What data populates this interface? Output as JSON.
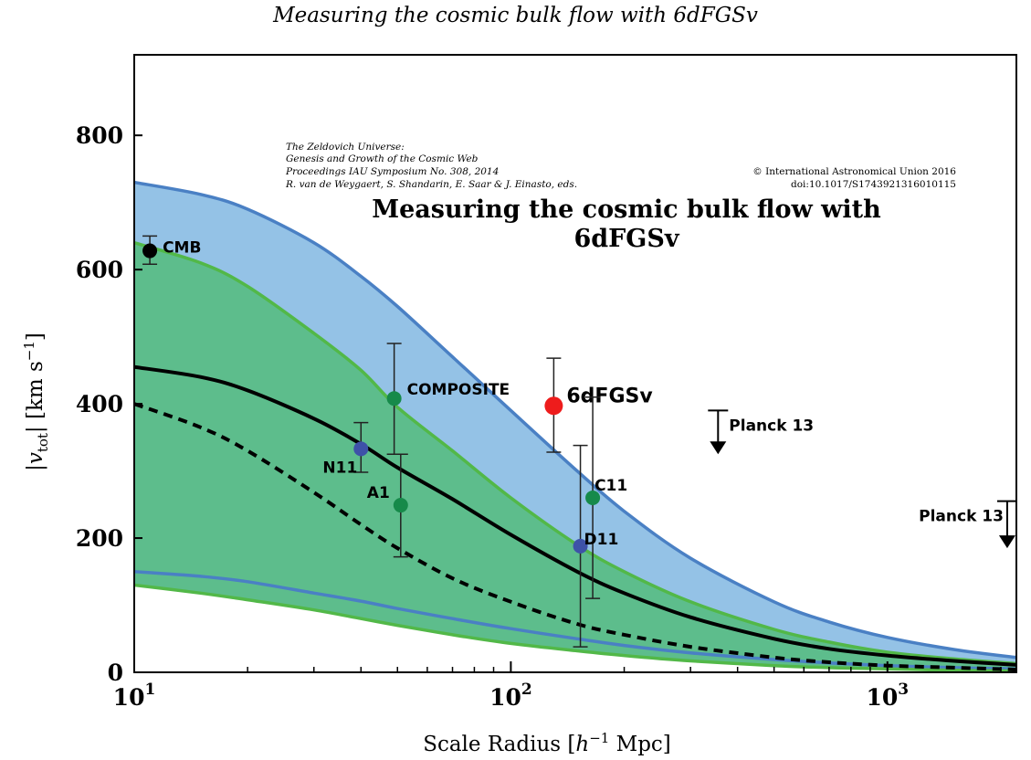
{
  "page": {
    "running_head": "Measuring the cosmic bulk flow with 6dFGSv"
  },
  "header": {
    "left_lines": [
      "The Zeldovich Universe:",
      "Genesis and Growth of the Cosmic Web",
      "Proceedings IAU Symposium No. 308, 2014",
      "R. van de Weygaert, S. Shandarin, E. Saar & J. Einasto, eds."
    ],
    "copyright": "© International Astronomical Union 2016",
    "doi": "doi:10.1017/S1743921316010115",
    "title_line1": "Measuring the cosmic bulk flow with",
    "title_line2": "6dFGSv"
  },
  "chart_data": {
    "type": "line",
    "xscale": "log",
    "xlim": [
      10,
      2200
    ],
    "ylim": [
      0,
      920
    ],
    "xlabel": "Scale Radius [h⁻¹ Mpc]",
    "ylabel": "|v_tot| [km s⁻¹]",
    "x_ticks": [
      {
        "value": 10,
        "base": "10",
        "exp": "1"
      },
      {
        "value": 100,
        "base": "10",
        "exp": "2"
      },
      {
        "value": 1000,
        "base": "10",
        "exp": "3"
      }
    ],
    "y_ticks": [
      0,
      200,
      400,
      600,
      800
    ],
    "colors": {
      "blue_fill": "#94c2e6",
      "blue_line": "#4a80c4",
      "green_fill": "#5dbd8c",
      "green_line": "#52b848",
      "light_green_fill": "#a3d48a",
      "point_blue": "#3e52a8",
      "point_green": "#168a4a",
      "point_red": "#ee1c1c",
      "point_black": "#000000"
    },
    "bands": [
      {
        "id": "blue",
        "x": [
          10,
          15,
          20,
          30,
          40,
          50,
          70,
          100,
          150,
          200,
          300,
          500,
          700,
          1000,
          1500,
          2200
        ],
        "upper": [
          730,
          712,
          690,
          640,
          590,
          545,
          470,
          390,
          300,
          240,
          170,
          105,
          75,
          52,
          34,
          22
        ],
        "lower": [
          150,
          143,
          135,
          118,
          106,
          95,
          80,
          65,
          50,
          40,
          29,
          19,
          14,
          10,
          7,
          5
        ]
      },
      {
        "id": "green",
        "x": [
          10,
          15,
          20,
          30,
          40,
          50,
          70,
          100,
          150,
          200,
          300,
          500,
          700,
          1000,
          1500,
          2200
        ],
        "upper": [
          640,
          610,
          575,
          505,
          450,
          395,
          330,
          260,
          190,
          150,
          105,
          64,
          45,
          30,
          20,
          13
        ],
        "lower": [
          130,
          118,
          108,
          93,
          80,
          70,
          56,
          43,
          32,
          25,
          17,
          10,
          7,
          5,
          3,
          2
        ]
      }
    ],
    "series": [
      {
        "id": "solid",
        "style": "solid",
        "x": [
          10,
          15,
          20,
          30,
          40,
          50,
          70,
          100,
          150,
          200,
          300,
          500,
          700,
          1000,
          1500,
          2200
        ],
        "y": [
          455,
          440,
          420,
          378,
          340,
          305,
          258,
          205,
          150,
          118,
          82,
          50,
          35,
          25,
          17,
          11
        ]
      },
      {
        "id": "dashed",
        "style": "dashed",
        "x": [
          10,
          15,
          20,
          30,
          40,
          50,
          70,
          100,
          150,
          200,
          300,
          500,
          700,
          1000,
          1500,
          2200
        ],
        "y": [
          400,
          365,
          330,
          268,
          220,
          185,
          140,
          105,
          72,
          56,
          38,
          22,
          15,
          10,
          7,
          4
        ]
      }
    ],
    "points": [
      {
        "label": "CMB",
        "x": 11,
        "y": 628,
        "err_low": 608,
        "err_high": 650,
        "color": "point_black",
        "label_pos": "right"
      },
      {
        "label": "COMPOSITE",
        "x": 49,
        "y": 408,
        "err_low": 325,
        "err_high": 490,
        "color": "point_green",
        "label_pos": "right"
      },
      {
        "label": "6dFGSv",
        "x": 130,
        "y": 397,
        "err_low": 328,
        "err_high": 468,
        "color": "point_red",
        "label_pos": "right",
        "big": true
      },
      {
        "label": "N11",
        "x": 40,
        "y": 333,
        "err_low": 298,
        "err_high": 372,
        "color": "point_blue",
        "label_pos": "left-below"
      },
      {
        "label": "A1",
        "x": 51,
        "y": 249,
        "err_low": 172,
        "err_high": 325,
        "color": "point_green",
        "label_pos": "left"
      },
      {
        "label": "C11",
        "x": 165,
        "y": 260,
        "err_low": 110,
        "err_high": 410,
        "color": "point_green",
        "label_pos": "right"
      },
      {
        "label": "D11",
        "x": 153,
        "y": 188,
        "err_low": 38,
        "err_high": 338,
        "color": "point_blue",
        "label_pos": "right"
      }
    ],
    "upper_limits": [
      {
        "label": "Planck 13",
        "x": 355,
        "y_top": 390,
        "y_tip": 325,
        "label_pos": "right"
      },
      {
        "label": "Planck 13",
        "x": 2080,
        "y_top": 255,
        "y_tip": 185,
        "label_pos": "left"
      }
    ]
  }
}
